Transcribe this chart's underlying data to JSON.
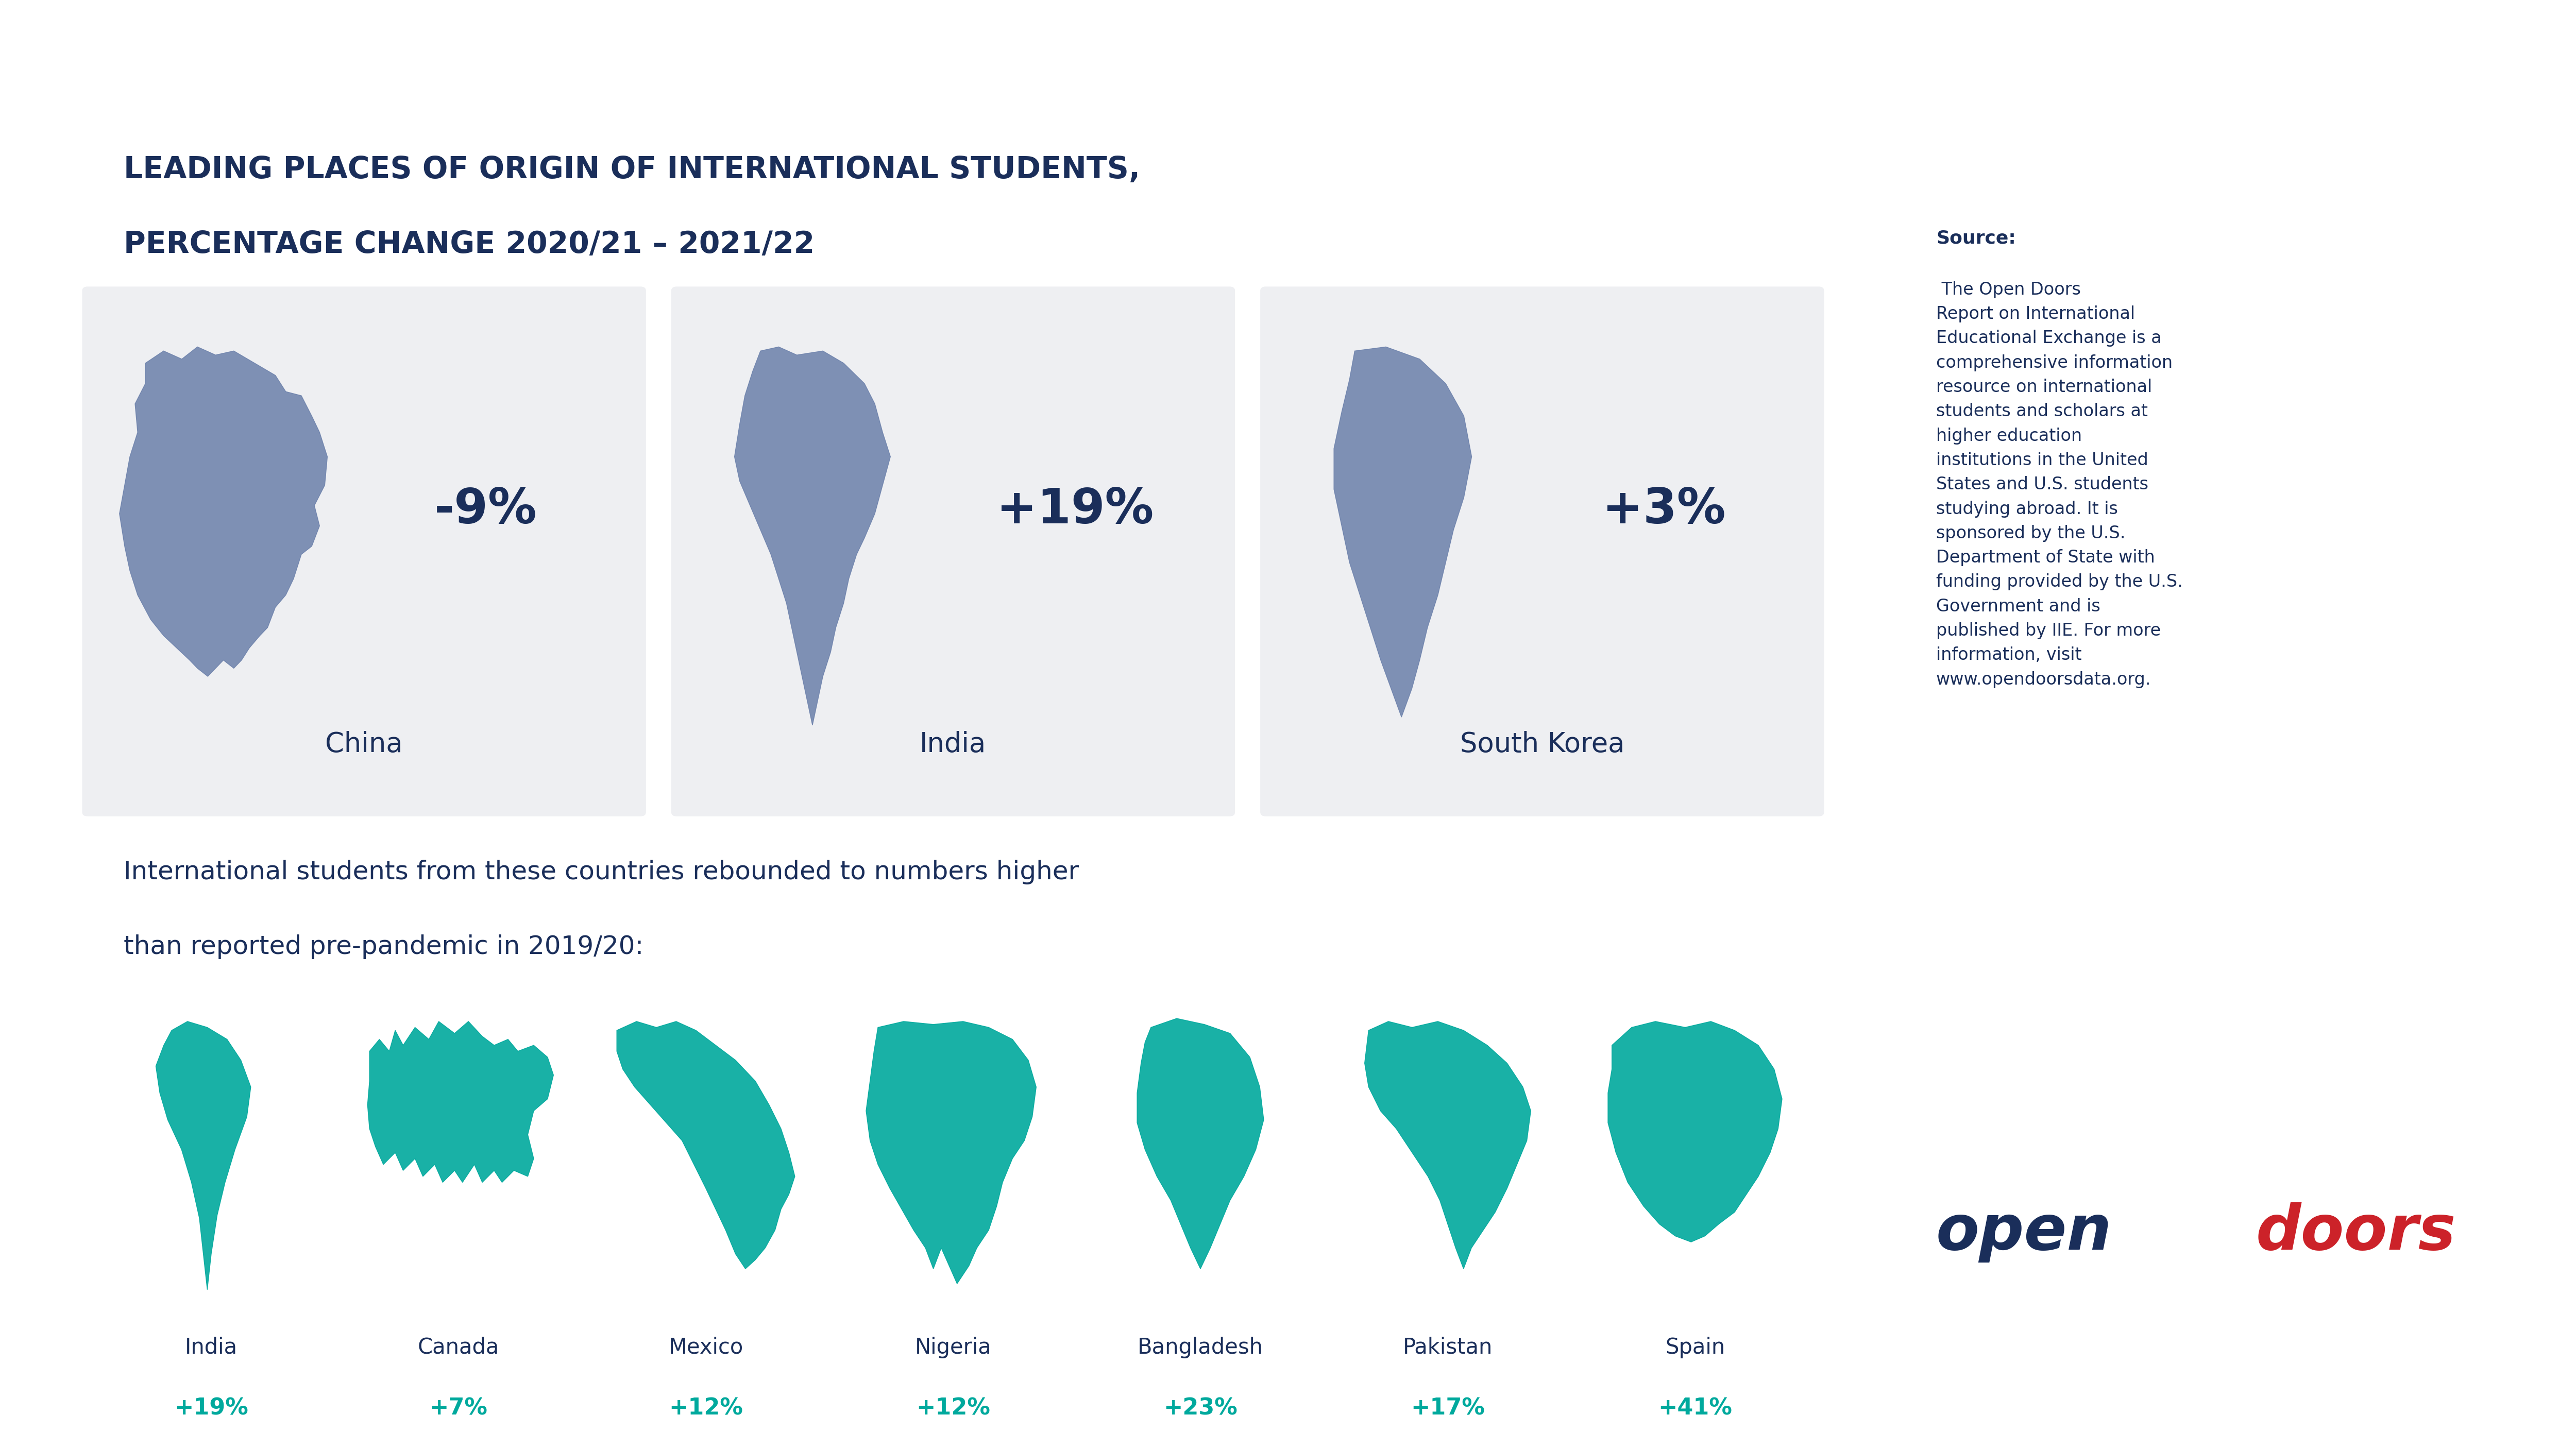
{
  "header_bg": "#2d3a6b",
  "header_text_color": "#ffffff",
  "main_title_line1": "LEADING PLACES OF ORIGIN OF INTERNATIONAL STUDENTS,",
  "main_title_line2": "PERCENTAGE CHANGE 2020/21 – 2021/22",
  "main_title_color": "#1a2e5a",
  "bg_color": "#ffffff",
  "card_bg": "#eeeff2",
  "map_color_top": "#6a7faa",
  "map_color_bot": "#00a99d",
  "top3": [
    {
      "country": "China",
      "pct": "-9%"
    },
    {
      "country": "India",
      "pct": "+19%"
    },
    {
      "country": "South Korea",
      "pct": "+3%"
    }
  ],
  "rebound_line1": "International students from these countries rebounded to numbers higher",
  "rebound_line2": "than reported pre-pandemic in 2019/20:",
  "rebound_color": "#1a2e5a",
  "bottom7": [
    {
      "country": "India",
      "pct": "+19%"
    },
    {
      "country": "Canada",
      "pct": "+7%"
    },
    {
      "country": "Mexico",
      "pct": "+12%"
    },
    {
      "country": "Nigeria",
      "pct": "+12%"
    },
    {
      "country": "Bangladesh",
      "pct": "+23%"
    },
    {
      "country": "Pakistan",
      "pct": "+17%"
    },
    {
      "country": "Spain",
      "pct": "+41%"
    }
  ],
  "country_label_color": "#1a2e5a",
  "pct_color": "#00a99d",
  "divider_color": "#bbbbbb",
  "source_color": "#1a2e5a",
  "logo_open_color": "#1a2e5a",
  "logo_doors_color": "#cc2229"
}
